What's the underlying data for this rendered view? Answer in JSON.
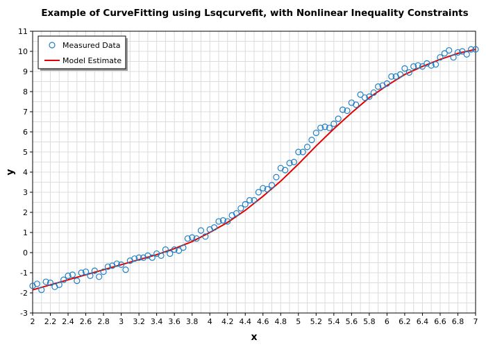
{
  "chart_data": {
    "type": "scatter",
    "title": "Example of CurveFitting using Lsqcurvefit, with Nonlinear Inequality Constraints",
    "xlabel": "x",
    "ylabel": "y",
    "xlim": [
      2,
      7
    ],
    "ylim": [
      -3,
      11
    ],
    "xticks": [
      "2",
      "2.2",
      "2.4",
      "2.6",
      "2.8",
      "3",
      "3.2",
      "3.4",
      "3.6",
      "3.8",
      "4",
      "4.2",
      "4.4",
      "4.6",
      "4.8",
      "5",
      "5.2",
      "5.4",
      "5.6",
      "5.8",
      "6",
      "6.2",
      "6.4",
      "6.6",
      "6.8",
      "7"
    ],
    "yticks": [
      "-3",
      "-2",
      "-1",
      "0",
      "1",
      "2",
      "3",
      "4",
      "5",
      "6",
      "7",
      "8",
      "9",
      "10",
      "11"
    ],
    "grid": true,
    "legend": {
      "position": "top-left",
      "entries": [
        "Measured Data",
        "Model Estimate"
      ]
    },
    "colors": {
      "marker": "#1f7fc4",
      "line": "#e00000",
      "grid": "#dcdcdc",
      "legend_shadow": "#9a9a9a"
    },
    "series": [
      {
        "name": "Measured Data",
        "style": "markers",
        "x": [
          2.0,
          2.05,
          2.1,
          2.15,
          2.2,
          2.25,
          2.3,
          2.35,
          2.4,
          2.45,
          2.5,
          2.55,
          2.6,
          2.65,
          2.7,
          2.75,
          2.8,
          2.85,
          2.9,
          2.95,
          3.0,
          3.05,
          3.1,
          3.15,
          3.2,
          3.25,
          3.3,
          3.35,
          3.4,
          3.45,
          3.5,
          3.55,
          3.6,
          3.65,
          3.7,
          3.75,
          3.8,
          3.85,
          3.9,
          3.95,
          4.0,
          4.05,
          4.1,
          4.15,
          4.2,
          4.25,
          4.3,
          4.35,
          4.4,
          4.45,
          4.5,
          4.55,
          4.6,
          4.65,
          4.7,
          4.75,
          4.8,
          4.85,
          4.9,
          4.95,
          5.0,
          5.05,
          5.1,
          5.15,
          5.2,
          5.25,
          5.3,
          5.35,
          5.4,
          5.45,
          5.5,
          5.55,
          5.6,
          5.65,
          5.7,
          5.75,
          5.8,
          5.85,
          5.9,
          5.95,
          6.0,
          6.05,
          6.1,
          6.15,
          6.2,
          6.25,
          6.3,
          6.35,
          6.4,
          6.45,
          6.5,
          6.55,
          6.6,
          6.65,
          6.7,
          6.75,
          6.8,
          6.85,
          6.9,
          6.95,
          7.0
        ],
        "y": [
          -1.65,
          -1.55,
          -1.85,
          -1.45,
          -1.5,
          -1.7,
          -1.6,
          -1.35,
          -1.15,
          -1.1,
          -1.4,
          -1.0,
          -0.95,
          -1.15,
          -0.9,
          -1.2,
          -0.95,
          -0.7,
          -0.65,
          -0.55,
          -0.6,
          -0.85,
          -0.4,
          -0.3,
          -0.25,
          -0.25,
          -0.15,
          -0.25,
          -0.05,
          -0.15,
          0.15,
          -0.05,
          0.15,
          0.1,
          0.25,
          0.7,
          0.75,
          0.7,
          1.1,
          0.8,
          1.15,
          1.25,
          1.55,
          1.6,
          1.55,
          1.85,
          1.95,
          2.2,
          2.4,
          2.6,
          2.6,
          3.0,
          3.2,
          3.15,
          3.35,
          3.75,
          4.2,
          4.1,
          4.45,
          4.5,
          5.0,
          5.0,
          5.25,
          5.6,
          5.95,
          6.2,
          6.25,
          6.2,
          6.4,
          6.65,
          7.1,
          7.05,
          7.45,
          7.35,
          7.85,
          7.7,
          7.75,
          7.95,
          8.25,
          8.3,
          8.4,
          8.75,
          8.75,
          8.85,
          9.15,
          8.95,
          9.25,
          9.3,
          9.25,
          9.4,
          9.3,
          9.35,
          9.7,
          9.9,
          10.05,
          9.7,
          9.95,
          10.0,
          9.85,
          10.1,
          10.1
        ]
      },
      {
        "name": "Model Estimate",
        "style": "line",
        "x": [
          2.0,
          2.2,
          2.4,
          2.6,
          2.8,
          3.0,
          3.2,
          3.4,
          3.6,
          3.8,
          4.0,
          4.2,
          4.4,
          4.6,
          4.8,
          5.0,
          5.2,
          5.4,
          5.6,
          5.8,
          6.0,
          6.2,
          6.4,
          6.6,
          6.8,
          7.0
        ],
        "y": [
          -1.85,
          -1.6,
          -1.35,
          -1.1,
          -0.85,
          -0.6,
          -0.35,
          -0.1,
          0.2,
          0.55,
          1.0,
          1.5,
          2.1,
          2.8,
          3.55,
          4.4,
          5.3,
          6.15,
          6.95,
          7.7,
          8.3,
          8.85,
          9.25,
          9.6,
          9.9,
          10.1
        ]
      }
    ]
  }
}
